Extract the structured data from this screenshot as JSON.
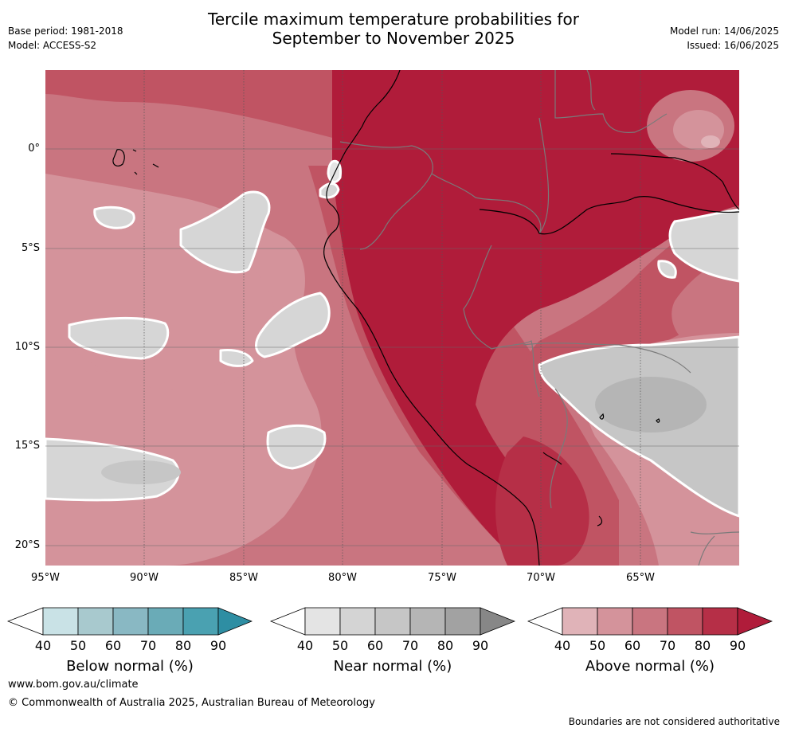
{
  "header": {
    "title_line1": "Tercile maximum temperature probabilities for",
    "title_line2": "September to November 2025",
    "base_period": "Base period: 1981-2018",
    "model": "Model: ACCESS-S2",
    "model_run": "Model run: 14/06/2025",
    "issued": "Issued: 16/06/2025"
  },
  "axes": {
    "lat_labels": [
      "0°",
      "5°S",
      "10°S",
      "15°S",
      "20°S"
    ],
    "lon_labels": [
      "95°W",
      "90°W",
      "85°W",
      "80°W",
      "75°W",
      "70°W",
      "65°W"
    ]
  },
  "colorbars": [
    {
      "title": "Below normal (%)",
      "ticks": [
        "40",
        "50",
        "60",
        "70",
        "80",
        "90"
      ],
      "colors": [
        "#c9e2e6",
        "#a8c9ce",
        "#89b8c3",
        "#6aabb7",
        "#4aa1b1",
        "#2e8ea3"
      ]
    },
    {
      "title": "Near normal (%)",
      "ticks": [
        "40",
        "50",
        "60",
        "70",
        "80",
        "90"
      ],
      "colors": [
        "#e4e4e4",
        "#d4d4d4",
        "#c6c6c6",
        "#b5b5b5",
        "#a2a2a2",
        "#878787"
      ]
    },
    {
      "title": "Above normal (%)",
      "ticks": [
        "40",
        "50",
        "60",
        "70",
        "80",
        "90"
      ],
      "colors": [
        "#e0b3b8",
        "#d4939b",
        "#c97580",
        "#c05463",
        "#b62f47",
        "#b01c3a"
      ]
    }
  ],
  "footer": {
    "url": "www.bom.gov.au/climate",
    "copyright": "© Commonwealth of Australia 2025, Australian Bureau of Meteorology",
    "disclaimer": "Boundaries are not considered authoritative"
  }
}
